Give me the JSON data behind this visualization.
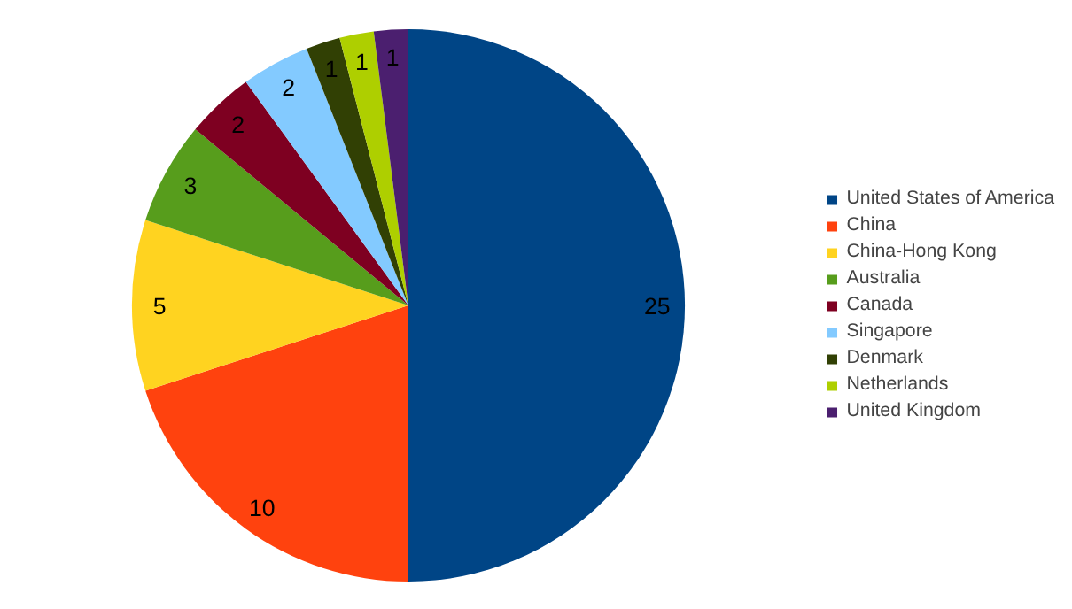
{
  "chart_data": {
    "type": "pie",
    "categories": [
      "United States of America",
      "China",
      "China-Hong Kong",
      "Australia",
      "Canada",
      "Singapore",
      "Denmark",
      "Netherlands",
      "United Kingdom"
    ],
    "values": [
      25,
      10,
      5,
      3,
      2,
      2,
      1,
      1,
      1
    ],
    "colors": [
      "#004586",
      "#ff420e",
      "#ffd320",
      "#579d1c",
      "#7e0021",
      "#83caff",
      "#314004",
      "#aecf00",
      "#4b1f6f"
    ],
    "data_labels": true,
    "legend": "right"
  }
}
